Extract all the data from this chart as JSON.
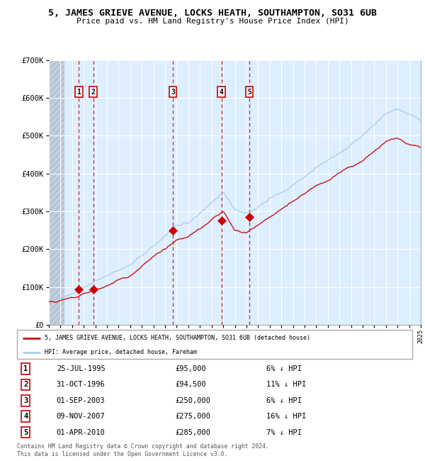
{
  "title": "5, JAMES GRIEVE AVENUE, LOCKS HEATH, SOUTHAMPTON, SO31 6UB",
  "subtitle": "Price paid vs. HM Land Registry's House Price Index (HPI)",
  "ylim": [
    0,
    700000
  ],
  "yticks": [
    0,
    100000,
    200000,
    300000,
    400000,
    500000,
    600000,
    700000
  ],
  "ytick_labels": [
    "£0",
    "£100K",
    "£200K",
    "£300K",
    "£400K",
    "£500K",
    "£600K",
    "£700K"
  ],
  "x_start_year": 1993,
  "x_end_year": 2025,
  "hpi_color": "#aaccee",
  "price_color": "#cc1111",
  "sale_marker_color": "#cc0000",
  "dashed_line_color": "#cc2222",
  "bg_color": "#ddeeff",
  "hatched_color": "#c8d8e8",
  "grid_color": "#ffffff",
  "sales": [
    {
      "label": "1",
      "date_year": 1995.57,
      "price": 95000
    },
    {
      "label": "2",
      "date_year": 1996.83,
      "price": 94500
    },
    {
      "label": "3",
      "date_year": 2003.67,
      "price": 250000
    },
    {
      "label": "4",
      "date_year": 2007.86,
      "price": 275000
    },
    {
      "label": "5",
      "date_year": 2010.25,
      "price": 285000
    }
  ],
  "table_data": [
    [
      "1",
      "25-JUL-1995",
      "£95,000",
      "6% ↓ HPI"
    ],
    [
      "2",
      "31-OCT-1996",
      "£94,500",
      "11% ↓ HPI"
    ],
    [
      "3",
      "01-SEP-2003",
      "£250,000",
      "6% ↓ HPI"
    ],
    [
      "4",
      "09-NOV-2007",
      "£275,000",
      "16% ↓ HPI"
    ],
    [
      "5",
      "01-APR-2010",
      "£285,000",
      "7% ↓ HPI"
    ]
  ],
  "legend_line1": "5, JAMES GRIEVE AVENUE, LOCKS HEATH, SOUTHAMPTON, SO31 6UB (detached house)",
  "legend_line2": "HPI: Average price, detached house, Fareham",
  "footer": "Contains HM Land Registry data © Crown copyright and database right 2024.\nThis data is licensed under the Open Government Licence v3.0."
}
